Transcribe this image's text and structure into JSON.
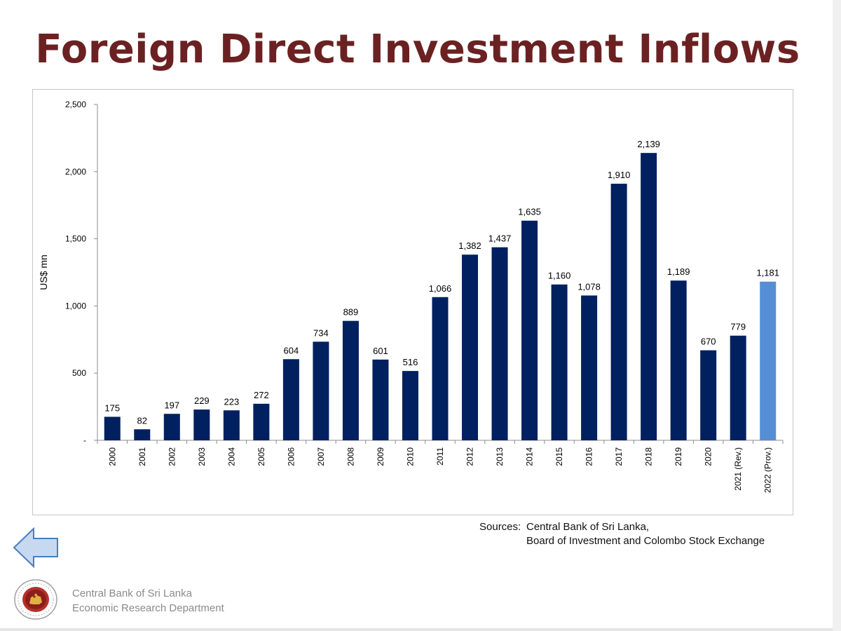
{
  "slide": {
    "title": "Foreign Direct Investment Inflows",
    "sources_label": "Sources:",
    "sources_line1": "Central Bank of Sri Lanka,",
    "sources_line2": "Board of Investment and Colombo Stock Exchange",
    "footer_line1": "Central Bank of Sri Lanka",
    "footer_line2": "Economic Research Department",
    "back_icon": "left-arrow-icon",
    "logo_icon": "central-bank-seal-icon"
  },
  "colors": {
    "title": "#6b2122",
    "bar": "#002060",
    "bar_highlight": "#558ed5"
  },
  "chart_data": {
    "type": "bar",
    "ylabel": "US$ mn",
    "xlabel": "",
    "ylim": [
      0,
      2500
    ],
    "yticks": [
      0,
      500,
      1000,
      1500,
      2000,
      2500
    ],
    "ytick_labels": [
      "-",
      "500",
      "1,000",
      "1,500",
      "2,000",
      "2,500"
    ],
    "grid": false,
    "categories": [
      "2000",
      "2001",
      "2002",
      "2003",
      "2004",
      "2005",
      "2006",
      "2007",
      "2008",
      "2009",
      "2010",
      "2011",
      "2012",
      "2013",
      "2014",
      "2015",
      "2016",
      "2017",
      "2018",
      "2019",
      "2020",
      "2021 (Rev.)",
      "2022 (Prov.)"
    ],
    "values": [
      175,
      82,
      197,
      229,
      223,
      272,
      604,
      734,
      889,
      601,
      516,
      1066,
      1382,
      1437,
      1635,
      1160,
      1078,
      1910,
      2139,
      1189,
      670,
      779,
      1181
    ],
    "value_labels": [
      "175",
      "82",
      "197",
      "229",
      "223",
      "272",
      "604",
      "734",
      "889",
      "601",
      "516",
      "1,066",
      "1,382",
      "1,437",
      "1,635",
      "1,160",
      "1,078",
      "1,910",
      "2,139",
      "1,189",
      "670",
      "779",
      "1,181"
    ],
    "highlight_index": 22
  }
}
